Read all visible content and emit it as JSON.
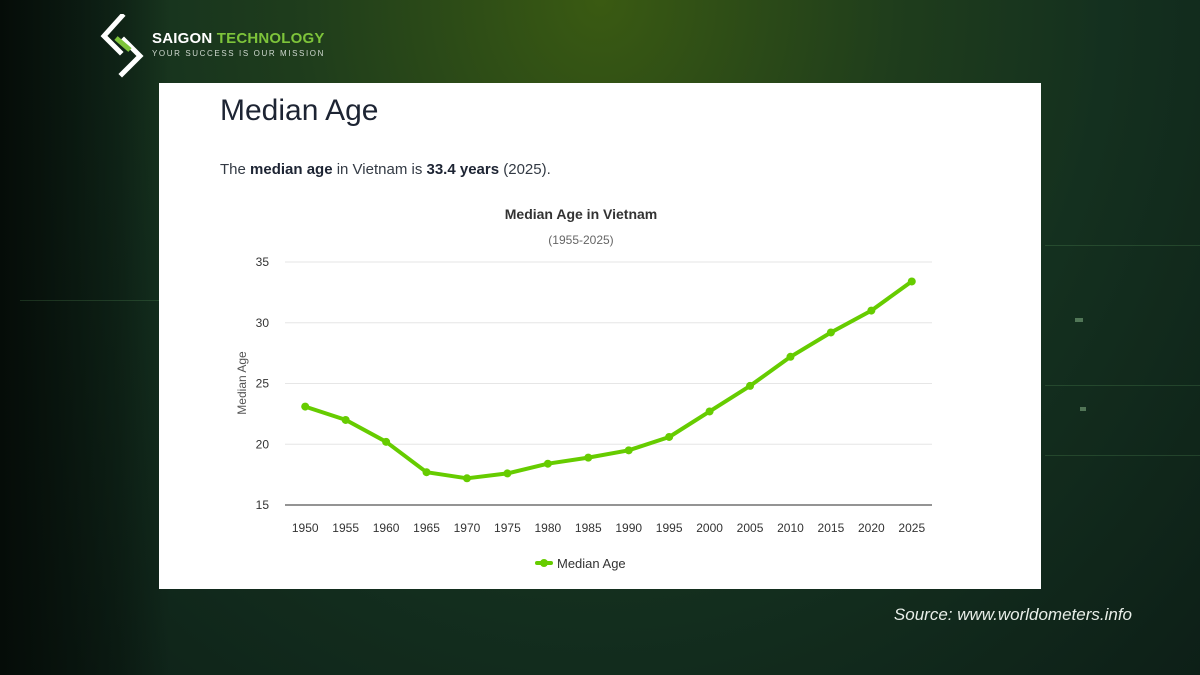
{
  "brand": {
    "name_part1": "SAIGON",
    "name_part2": "TECHNOLOGY",
    "tagline": "YOUR SUCCESS IS OUR MISSION",
    "accent_color": "#7ec43a"
  },
  "card": {
    "title": "Median Age",
    "summary": {
      "prefix": "The ",
      "bold1": "median age",
      "middle": " in Vietnam is ",
      "bold2": "33.4 years",
      "suffix": " (2025)."
    }
  },
  "chart_data": {
    "type": "line",
    "title": "Median Age in Vietnam",
    "subtitle": "(1955-2025)",
    "xlabel": "",
    "ylabel": "Median Age",
    "ylim": [
      15,
      35
    ],
    "yticks": [
      15,
      20,
      25,
      30,
      35
    ],
    "categories": [
      "1950",
      "1955",
      "1960",
      "1965",
      "1970",
      "1975",
      "1980",
      "1985",
      "1990",
      "1995",
      "2000",
      "2005",
      "2010",
      "2015",
      "2020",
      "2025"
    ],
    "series": [
      {
        "name": "Median Age",
        "color": "#66cc00",
        "values": [
          23.1,
          22.0,
          20.2,
          17.7,
          17.2,
          17.6,
          18.4,
          18.9,
          19.5,
          20.6,
          22.7,
          24.8,
          27.2,
          29.2,
          31.0,
          33.4
        ]
      }
    ],
    "grid": true,
    "legend": "bottom-center"
  },
  "source": "Source: www.worldometers.info"
}
